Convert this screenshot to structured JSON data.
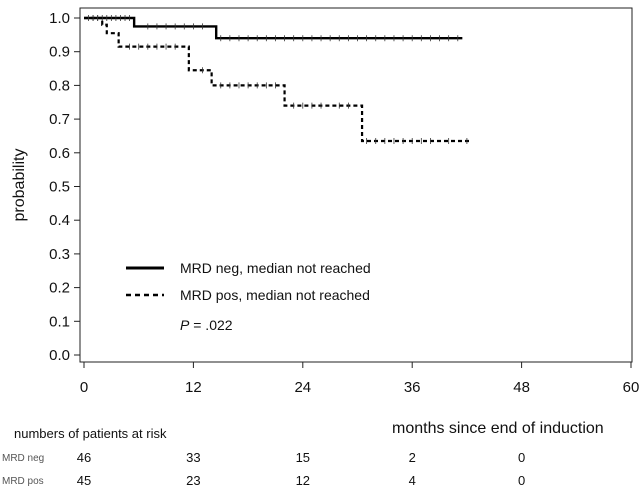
{
  "chart_data": {
    "type": "line",
    "subtype": "kaplan-meier",
    "title": "",
    "xlabel": "months since end of induction",
    "ylabel": "probability",
    "xlim": [
      0,
      60
    ],
    "ylim": [
      0.0,
      1.0
    ],
    "x_ticks": [
      "0",
      "12",
      "24",
      "36",
      "48",
      "60"
    ],
    "y_ticks": [
      "0.0",
      "0.1",
      "0.2",
      "0.3",
      "0.4",
      "0.5",
      "0.6",
      "0.7",
      "0.8",
      "0.9",
      "1.0"
    ],
    "grid": false,
    "legend_position": "lower-left",
    "series": [
      {
        "name": "MRD neg, median not reached",
        "style": "solid",
        "steps": [
          [
            0,
            1.0
          ],
          [
            5.5,
            0.975
          ],
          [
            14.5,
            0.94
          ],
          [
            41.5,
            0.94
          ]
        ],
        "censor_times": [
          0.5,
          1,
          1.5,
          2,
          2.5,
          3,
          3.5,
          4,
          4.5,
          5,
          7,
          8,
          9,
          10,
          11,
          12,
          13,
          15,
          16,
          17,
          18,
          19,
          20,
          21,
          22,
          23,
          24,
          25,
          26,
          27,
          28,
          29,
          30,
          31,
          32,
          33,
          34,
          35,
          36,
          37,
          38,
          39,
          40,
          41
        ]
      },
      {
        "name": "MRD pos, median not reached",
        "style": "dashed",
        "steps": [
          [
            0,
            1.0
          ],
          [
            2.0,
            0.98
          ],
          [
            2.5,
            0.955
          ],
          [
            3.8,
            0.915
          ],
          [
            11.5,
            0.845
          ],
          [
            14.0,
            0.8
          ],
          [
            22.0,
            0.74
          ],
          [
            30.5,
            0.635
          ],
          [
            42.5,
            0.635
          ]
        ],
        "censor_times": [
          1,
          1.5,
          5,
          6,
          7,
          8,
          9,
          10,
          13,
          15,
          16,
          17,
          18,
          19,
          20,
          21,
          23,
          24,
          25,
          26,
          28,
          29,
          31,
          32,
          33,
          34,
          35,
          36,
          37,
          38,
          40,
          42
        ]
      }
    ],
    "annotation": {
      "italic": "P",
      "text": " = .022"
    },
    "risk_table": {
      "title": "numbers of patients at risk",
      "time_points": [
        0,
        12,
        24,
        36,
        48
      ],
      "rows": [
        {
          "label": "MRD neg",
          "values": [
            "46",
            "33",
            "15",
            "2",
            "0"
          ]
        },
        {
          "label": "MRD pos",
          "values": [
            "45",
            "23",
            "12",
            "4",
            "0"
          ]
        }
      ]
    }
  }
}
